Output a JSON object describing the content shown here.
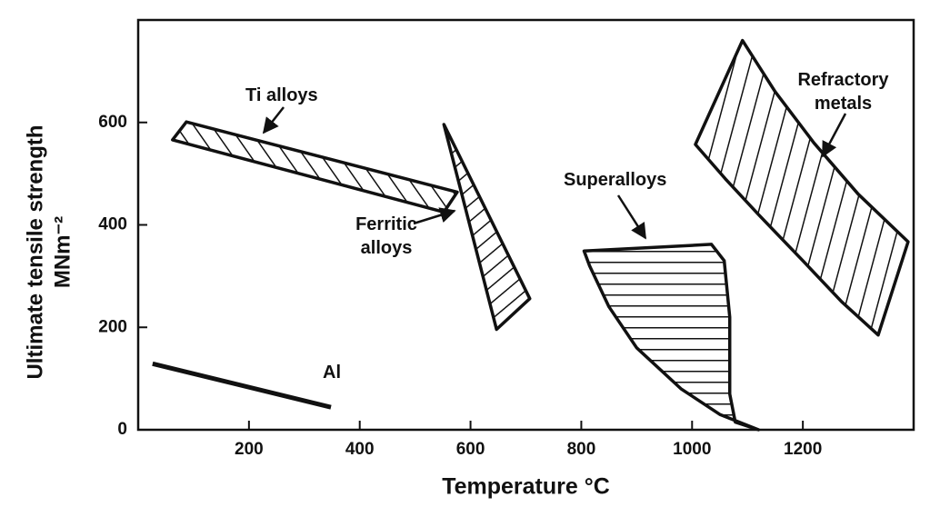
{
  "chart_data": {
    "type": "region",
    "xlabel": "Temperature °C",
    "ylabel": [
      "Ultimate tensile strength",
      "MNm⁻²"
    ],
    "xlim": [
      0,
      1400
    ],
    "ylim": [
      0,
      800
    ],
    "xticks": [
      200,
      400,
      600,
      800,
      1000,
      1200
    ],
    "yticks": [
      0,
      200,
      400,
      600
    ],
    "color": "#111111",
    "series": [
      {
        "name": "Ti alloys",
        "x": [
          87,
          576,
          552,
          62
        ],
        "y": [
          601,
          464,
          425,
          566
        ]
      },
      {
        "name": "Ferritic alloys",
        "x": [
          552,
          707,
          647
        ],
        "y": [
          596,
          256,
          196
        ]
      },
      {
        "name": "Superalloys",
        "x": [
          805,
          1035,
          1058,
          1068,
          1068,
          1078,
          1120,
          1050,
          980,
          900,
          850,
          815
        ],
        "y": [
          349,
          362,
          330,
          220,
          70,
          15,
          0,
          30,
          80,
          160,
          240,
          320
        ]
      },
      {
        "name": "Refractory metals",
        "x": [
          1091,
          1150,
          1220,
          1300,
          1390,
          1336,
          1270,
          1200,
          1120,
          1060,
          1006
        ],
        "y": [
          760,
          660,
          560,
          460,
          367,
          185,
          250,
          330,
          420,
          490,
          557
        ]
      },
      {
        "name": "Al",
        "x": [
          26,
          348
        ],
        "y": [
          129,
          44
        ]
      }
    ]
  }
}
